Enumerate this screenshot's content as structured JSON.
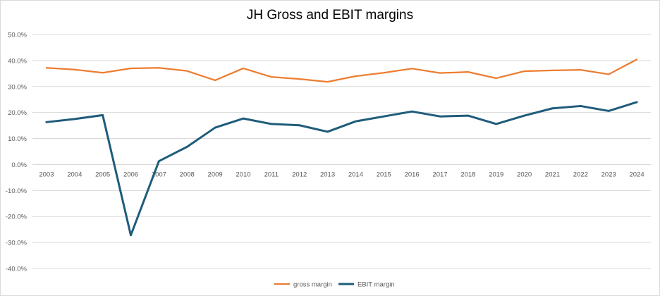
{
  "chart_data": {
    "type": "line",
    "title": "JH Gross and EBIT margins",
    "xlabel": "",
    "ylabel": "",
    "categories": [
      "2003",
      "2004",
      "2005",
      "2006",
      "2007",
      "2008",
      "2009",
      "2010",
      "2011",
      "2012",
      "2013",
      "2014",
      "2015",
      "2016",
      "2017",
      "2018",
      "2019",
      "2020",
      "2021",
      "2022",
      "2023",
      "2024"
    ],
    "y_ticks": [
      "50.0%",
      "40.0%",
      "30.0%",
      "20.0%",
      "10.0%",
      "0.0%",
      "-10.0%",
      "-20.0%",
      "-30.0%",
      "-40.0%"
    ],
    "ylim": [
      -40,
      50
    ],
    "grid": true,
    "legend_position": "bottom",
    "series": [
      {
        "name": "gross margin",
        "color": "#ED7D31",
        "values": [
          37.2,
          36.5,
          35.3,
          37.0,
          37.2,
          36.0,
          32.4,
          37.0,
          33.7,
          32.9,
          31.8,
          34.0,
          35.3,
          36.9,
          35.2,
          35.6,
          33.2,
          35.9,
          36.2,
          36.4,
          34.7,
          40.4
        ]
      },
      {
        "name": "EBIT margin",
        "color": "#1F5C7A",
        "values": [
          16.3,
          17.5,
          19.0,
          -27.2,
          1.3,
          6.8,
          14.2,
          17.7,
          15.6,
          15.1,
          12.6,
          16.6,
          18.5,
          20.4,
          18.5,
          18.8,
          15.6,
          18.8,
          21.6,
          22.5,
          20.6,
          24.0
        ]
      }
    ]
  }
}
